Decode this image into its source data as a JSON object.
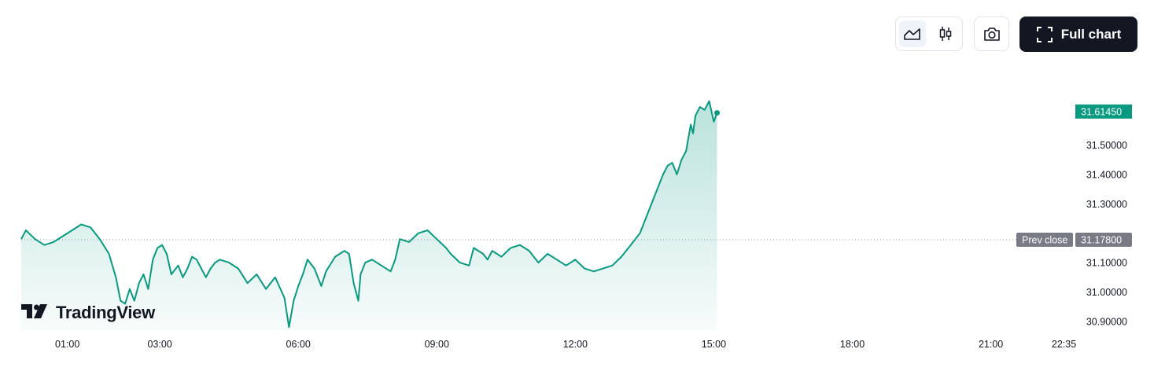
{
  "toolbar": {
    "full_chart_label": "Full chart",
    "line_view_icon": "area-chart-icon",
    "candles_view_icon": "candlestick-icon",
    "snapshot_icon": "camera-icon",
    "fullscreen_icon": "expand-icon"
  },
  "logo": {
    "text": "TradingView"
  },
  "colors": {
    "line": "#089981",
    "fill_top": "#089981",
    "price_badge": "#089981",
    "prev_close_badge": "#787b86",
    "text": "#131722"
  },
  "chart_data": {
    "type": "area",
    "x_unit": "time of day (hours)",
    "xlim": [
      0.0,
      23.0
    ],
    "ylim": [
      30.87,
      31.74
    ],
    "x_ticks": [
      {
        "label": "01:00",
        "value": 1.0
      },
      {
        "label": "03:00",
        "value": 3.0
      },
      {
        "label": "06:00",
        "value": 6.0
      },
      {
        "label": "09:00",
        "value": 9.0
      },
      {
        "label": "12:00",
        "value": 12.0
      },
      {
        "label": "15:00",
        "value": 15.0
      },
      {
        "label": "18:00",
        "value": 18.0
      },
      {
        "label": "21:00",
        "value": 21.0
      },
      {
        "label": "22:35",
        "value": 22.583
      }
    ],
    "y_ticks": [
      "31.50000",
      "31.40000",
      "31.30000",
      "31.10000",
      "31.00000",
      "30.90000"
    ],
    "y_tick_values": [
      31.5,
      31.4,
      31.3,
      31.1,
      31.0,
      30.9
    ],
    "last_price": {
      "label": "31.61450",
      "value": 31.6145
    },
    "prev_close": {
      "label_text": "Prev close",
      "value_text": "31.17800",
      "value": 31.178
    },
    "series": [
      {
        "x": [
          0.0,
          0.1,
          0.3,
          0.5,
          0.7,
          0.9,
          1.1,
          1.3,
          1.5,
          1.7,
          1.9,
          2.05,
          2.15,
          2.25,
          2.35,
          2.45,
          2.55,
          2.65,
          2.75,
          2.85,
          2.95,
          3.05,
          3.15,
          3.25,
          3.4,
          3.5,
          3.6,
          3.7,
          3.8,
          3.9,
          4.0,
          4.1,
          4.2,
          4.3,
          4.5,
          4.7,
          4.9,
          5.1,
          5.3,
          5.5,
          5.7,
          5.8,
          5.9,
          6.0,
          6.1,
          6.2,
          6.35,
          6.5,
          6.6,
          6.8,
          7.0,
          7.1,
          7.2,
          7.3,
          7.35,
          7.45,
          7.6,
          7.8,
          8.0,
          8.1,
          8.2,
          8.4,
          8.6,
          8.8,
          9.0,
          9.2,
          9.3,
          9.5,
          9.7,
          9.8,
          10.0,
          10.1,
          10.2,
          10.4,
          10.6,
          10.8,
          11.0,
          11.2,
          11.4,
          11.6,
          11.8,
          12.0,
          12.2,
          12.4,
          12.6,
          12.8,
          13.0,
          13.1,
          13.2,
          13.3,
          13.4,
          13.5,
          13.6,
          13.7,
          13.8,
          13.9,
          14.0,
          14.1,
          14.2,
          14.3,
          14.4,
          14.5,
          14.55,
          14.6,
          14.7,
          14.8,
          14.9,
          15.0,
          15.07
        ],
        "values": [
          31.18,
          31.21,
          31.18,
          31.16,
          31.17,
          31.19,
          31.21,
          31.23,
          31.22,
          31.18,
          31.13,
          31.05,
          30.97,
          30.96,
          31.01,
          30.97,
          31.03,
          31.06,
          31.01,
          31.11,
          31.15,
          31.16,
          31.13,
          31.06,
          31.09,
          31.05,
          31.08,
          31.12,
          31.11,
          31.08,
          31.05,
          31.08,
          31.1,
          31.11,
          31.1,
          31.08,
          31.03,
          31.06,
          31.01,
          31.05,
          30.98,
          30.88,
          30.97,
          31.02,
          31.06,
          31.11,
          31.08,
          31.02,
          31.07,
          31.12,
          31.14,
          31.13,
          31.03,
          30.97,
          31.06,
          31.1,
          31.11,
          31.09,
          31.07,
          31.11,
          31.18,
          31.17,
          31.2,
          31.21,
          31.18,
          31.15,
          31.13,
          31.1,
          31.09,
          31.15,
          31.13,
          31.11,
          31.14,
          31.12,
          31.15,
          31.16,
          31.14,
          31.1,
          31.13,
          31.11,
          31.09,
          31.11,
          31.08,
          31.07,
          31.08,
          31.09,
          31.12,
          31.14,
          31.16,
          31.18,
          31.2,
          31.24,
          31.28,
          31.32,
          31.36,
          31.4,
          31.43,
          31.44,
          31.4,
          31.45,
          31.48,
          31.57,
          31.54,
          31.6,
          31.63,
          31.62,
          31.65,
          31.58,
          31.61
        ]
      }
    ],
    "grid": false,
    "legend": "none"
  }
}
